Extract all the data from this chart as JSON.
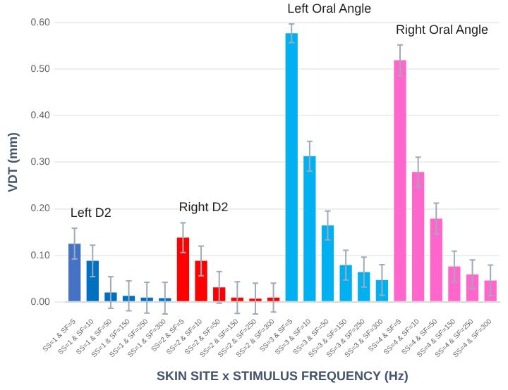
{
  "chart_data": {
    "type": "bar",
    "xlabel": "SKIN SITE x STIMULUS FREQUENCY (Hz)",
    "ylabel": "VDT (mm)",
    "categories": [
      "SS=1 & SF=5",
      "SS=1 & SF=10",
      "SS=1 & SF=50",
      "SS=1 & SF=150",
      "SS=1 & SF=250",
      "SS=1 & SF=300",
      "SS=2 & SF=5",
      "SS=2 & SF=10",
      "SS=2 & SF=50",
      "SS=2 & SF=150",
      "SS=2 & SF=250",
      "SS=2 & SF=300",
      "SS=3 & SF=5",
      "SS=3 & SF=10",
      "SS=3 & SF=50",
      "SS=3 & SF=150",
      "SS=3 & SF=250",
      "SS=3 & SF=300",
      "SS=4 & SF=5",
      "SS=4 & SF=10",
      "SS=4 & SF=50",
      "SS=4 & SF=150",
      "SS=4 & SF=250",
      "SS=4 & SF=300"
    ],
    "values": [
      0.125,
      0.088,
      0.02,
      0.013,
      0.009,
      0.008,
      0.138,
      0.088,
      0.031,
      0.009,
      0.007,
      0.009,
      0.577,
      0.313,
      0.164,
      0.079,
      0.064,
      0.047,
      0.519,
      0.279,
      0.179,
      0.076,
      0.059,
      0.046
    ],
    "errors": [
      0.033,
      0.034,
      0.034,
      0.032,
      0.033,
      0.034,
      0.032,
      0.032,
      0.034,
      0.034,
      0.033,
      0.031,
      0.02,
      0.032,
      0.031,
      0.032,
      0.032,
      0.033,
      0.033,
      0.032,
      0.033,
      0.033,
      0.031,
      0.033
    ],
    "colors": [
      "#4472c4",
      "#0070c0",
      "#0070c0",
      "#0070c0",
      "#0070c0",
      "#0070c0",
      "#ff0000",
      "#ff0000",
      "#ff0000",
      "#ff0000",
      "#ff0000",
      "#ff0000",
      "#00b0f0",
      "#00b0f0",
      "#00b0f0",
      "#00b0f0",
      "#00b0f0",
      "#00b0f0",
      "#ff66cc",
      "#ff66cc",
      "#ff66cc",
      "#ff66cc",
      "#ff66cc",
      "#ff66cc"
    ],
    "ylim": [
      0,
      0.6
    ],
    "yticks": [
      {
        "value": 0,
        "label": "0.00"
      },
      {
        "value": 0.1,
        "label": "0.10"
      },
      {
        "value": 0.2,
        "label": "0.20"
      },
      {
        "value": 0.3,
        "label": "0.30"
      },
      {
        "value": 0.4,
        "label": "0.40"
      },
      {
        "value": 0.5,
        "label": "0.50"
      },
      {
        "value": 0.6,
        "label": "0.60"
      }
    ],
    "grid": "y",
    "legend": false,
    "annotations": [
      "Left D2",
      "Right D2",
      "Left Oral Angle",
      "Right Oral Angle"
    ]
  }
}
